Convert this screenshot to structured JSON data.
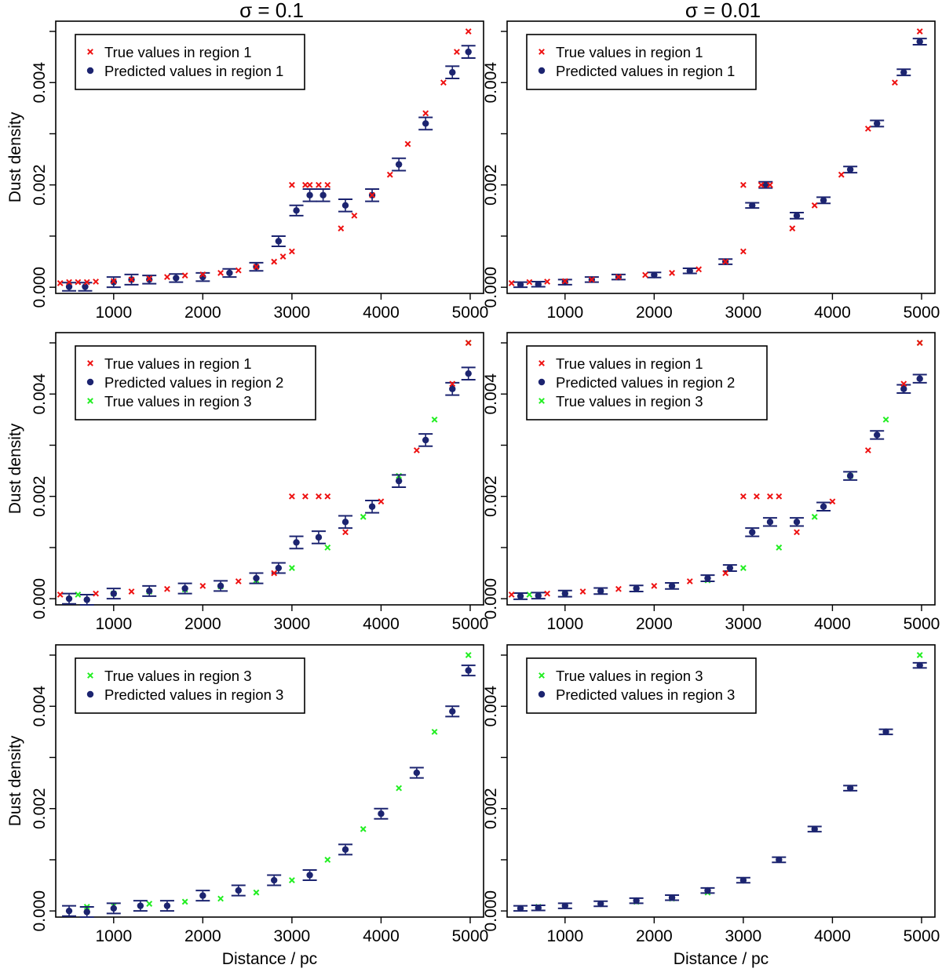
{
  "figure": {
    "column_titles": [
      "σ = 0.1",
      "σ = 0.01"
    ],
    "colors": {
      "true_region1": "#ee1111",
      "predicted": "#1c2470",
      "true_region3": "#22ee22",
      "axis": "#000000"
    }
  },
  "chart_data": [
    {
      "type": "scatter",
      "row": 1,
      "col": 1,
      "sigma": 0.1,
      "pattern": "A",
      "xlabel": "",
      "ylabel": "Dust density",
      "xlim": [
        350,
        5150
      ],
      "ylim": [
        -0.00012,
        0.0052
      ],
      "xticks": [
        1000,
        2000,
        3000,
        4000,
        5000
      ],
      "yticks": [
        0.0,
        0.002,
        0.004
      ],
      "ytick_labels": [
        "0.000",
        "0.002",
        "0.004"
      ],
      "legend": [
        "True values in region 1",
        "Predicted values in region 1"
      ],
      "true_region1": [
        [
          400,
          8e-05
        ],
        [
          500,
          0.0001
        ],
        [
          600,
          0.0001
        ],
        [
          700,
          0.0001
        ],
        [
          800,
          0.00011
        ],
        [
          1000,
          0.00012
        ],
        [
          1200,
          0.00015
        ],
        [
          1400,
          0.00017
        ],
        [
          1600,
          0.0002
        ],
        [
          1800,
          0.00023
        ],
        [
          2000,
          0.00025
        ],
        [
          2200,
          0.00028
        ],
        [
          2400,
          0.00033
        ],
        [
          2600,
          0.0004
        ],
        [
          2800,
          0.0005
        ],
        [
          2900,
          0.0006
        ],
        [
          3000,
          0.0007
        ],
        [
          3000,
          0.002
        ],
        [
          3150,
          0.002
        ],
        [
          3200,
          0.002
        ],
        [
          3300,
          0.002
        ],
        [
          3400,
          0.002
        ],
        [
          3550,
          0.00115
        ],
        [
          3700,
          0.0014
        ],
        [
          3900,
          0.0018
        ],
        [
          4100,
          0.0022
        ],
        [
          4300,
          0.0028
        ],
        [
          4500,
          0.0034
        ],
        [
          4700,
          0.004
        ],
        [
          4850,
          0.0046
        ],
        [
          4980,
          0.005
        ]
      ],
      "predicted": [
        [
          500,
          1e-05,
          8e-05
        ],
        [
          680,
          1e-05,
          8e-05
        ],
        [
          1000,
          0.0001,
          0.0001
        ],
        [
          1200,
          0.00015,
          0.0001
        ],
        [
          1400,
          0.00015,
          8e-05
        ],
        [
          1700,
          0.00018,
          8e-05
        ],
        [
          2000,
          0.0002,
          8e-05
        ],
        [
          2300,
          0.00028,
          8e-05
        ],
        [
          2600,
          0.0004,
          8e-05
        ],
        [
          2850,
          0.0009,
          0.0001
        ],
        [
          3050,
          0.0015,
          0.0001
        ],
        [
          3200,
          0.0018,
          0.00012
        ],
        [
          3350,
          0.0018,
          0.00012
        ],
        [
          3600,
          0.0016,
          0.00012
        ],
        [
          3900,
          0.0018,
          0.00012
        ],
        [
          4200,
          0.0024,
          0.00012
        ],
        [
          4500,
          0.0032,
          0.00012
        ],
        [
          4800,
          0.0042,
          0.00012
        ],
        [
          4980,
          0.0046,
          0.00012
        ]
      ]
    },
    {
      "type": "scatter",
      "row": 1,
      "col": 2,
      "sigma": 0.01,
      "pattern": "A",
      "xlabel": "",
      "ylabel": "",
      "xlim": [
        350,
        5150
      ],
      "ylim": [
        -0.00012,
        0.0052
      ],
      "xticks": [
        1000,
        2000,
        3000,
        4000,
        5000
      ],
      "yticks": [
        0.0,
        0.002,
        0.004
      ],
      "ytick_labels": [
        "0.000",
        "0.002",
        "0.004"
      ],
      "legend": [
        "True values in region 1",
        "Predicted values in region 1"
      ],
      "true_region1": [
        [
          400,
          8e-05
        ],
        [
          600,
          0.0001
        ],
        [
          800,
          0.00011
        ],
        [
          1000,
          0.00012
        ],
        [
          1300,
          0.00015
        ],
        [
          1600,
          0.0002
        ],
        [
          1900,
          0.00024
        ],
        [
          2200,
          0.00028
        ],
        [
          2500,
          0.00035
        ],
        [
          2800,
          0.0005
        ],
        [
          3000,
          0.0007
        ],
        [
          3000,
          0.002
        ],
        [
          3200,
          0.002
        ],
        [
          3300,
          0.002
        ],
        [
          3550,
          0.00115
        ],
        [
          3800,
          0.0016
        ],
        [
          4100,
          0.0022
        ],
        [
          4400,
          0.0031
        ],
        [
          4700,
          0.004
        ],
        [
          4980,
          0.005
        ]
      ],
      "predicted": [
        [
          500,
          5e-05,
          5e-05
        ],
        [
          700,
          6e-05,
          5e-05
        ],
        [
          1000,
          0.0001,
          5e-05
        ],
        [
          1300,
          0.00015,
          5e-05
        ],
        [
          1600,
          0.0002,
          5e-05
        ],
        [
          2000,
          0.00024,
          5e-05
        ],
        [
          2400,
          0.00032,
          5e-05
        ],
        [
          2800,
          0.0005,
          5e-05
        ],
        [
          3100,
          0.0016,
          5e-05
        ],
        [
          3250,
          0.002,
          6e-05
        ],
        [
          3600,
          0.0014,
          6e-05
        ],
        [
          3900,
          0.0017,
          6e-05
        ],
        [
          4200,
          0.0023,
          6e-05
        ],
        [
          4500,
          0.0032,
          6e-05
        ],
        [
          4800,
          0.0042,
          6e-05
        ],
        [
          4980,
          0.0048,
          6e-05
        ]
      ]
    },
    {
      "type": "scatter",
      "row": 2,
      "col": 1,
      "sigma": 0.1,
      "pattern": "B",
      "xlabel": "",
      "ylabel": "Dust density",
      "xlim": [
        350,
        5150
      ],
      "ylim": [
        -0.00012,
        0.0052
      ],
      "xticks": [
        1000,
        2000,
        3000,
        4000,
        5000
      ],
      "yticks": [
        0.0,
        0.002,
        0.004
      ],
      "ytick_labels": [
        "0.000",
        "0.002",
        "0.004"
      ],
      "legend": [
        "True values in region 1",
        "Predicted values in region 2",
        "True values in region 3"
      ],
      "true_region1": [
        [
          400,
          8e-05
        ],
        [
          800,
          0.0001
        ],
        [
          1200,
          0.00014
        ],
        [
          1600,
          0.00019
        ],
        [
          2000,
          0.00025
        ],
        [
          2400,
          0.00034
        ],
        [
          2800,
          0.0005
        ],
        [
          3000,
          0.002
        ],
        [
          3150,
          0.002
        ],
        [
          3300,
          0.002
        ],
        [
          3400,
          0.002
        ],
        [
          3600,
          0.0013
        ],
        [
          4000,
          0.0019
        ],
        [
          4400,
          0.0029
        ],
        [
          4800,
          0.0042
        ],
        [
          4980,
          0.005
        ]
      ],
      "predicted": [
        [
          500,
          0.0,
          0.0001
        ],
        [
          700,
          -2e-05,
          0.0001
        ],
        [
          1000,
          0.0001,
          0.0001
        ],
        [
          1400,
          0.00015,
          0.0001
        ],
        [
          1800,
          0.0002,
          0.0001
        ],
        [
          2200,
          0.00025,
          0.0001
        ],
        [
          2600,
          0.0004,
          0.0001
        ],
        [
          2850,
          0.0006,
          0.0001
        ],
        [
          3050,
          0.0011,
          0.00012
        ],
        [
          3300,
          0.0012,
          0.00012
        ],
        [
          3600,
          0.0015,
          0.00012
        ],
        [
          3900,
          0.0018,
          0.00012
        ],
        [
          4200,
          0.0023,
          0.00012
        ],
        [
          4500,
          0.0031,
          0.00012
        ],
        [
          4800,
          0.0041,
          0.00012
        ],
        [
          4980,
          0.0044,
          0.00012
        ]
      ],
      "true_region3": [
        [
          600,
          8e-05
        ],
        [
          1000,
          0.0001
        ],
        [
          1400,
          0.00014
        ],
        [
          1800,
          0.00018
        ],
        [
          2200,
          0.00024
        ],
        [
          2600,
          0.00036
        ],
        [
          3000,
          0.0006
        ],
        [
          3400,
          0.001
        ],
        [
          3800,
          0.0016
        ],
        [
          4200,
          0.0024
        ],
        [
          4600,
          0.0035
        ],
        [
          4980,
          0.005
        ]
      ]
    },
    {
      "type": "scatter",
      "row": 2,
      "col": 2,
      "sigma": 0.01,
      "pattern": "B",
      "xlabel": "",
      "ylabel": "",
      "xlim": [
        350,
        5150
      ],
      "ylim": [
        -0.00012,
        0.0052
      ],
      "xticks": [
        1000,
        2000,
        3000,
        4000,
        5000
      ],
      "yticks": [
        0.0,
        0.002,
        0.004
      ],
      "ytick_labels": [
        "0.000",
        "0.002",
        "0.004"
      ],
      "legend": [
        "True values in region 1",
        "Predicted values in region 2",
        "True values in region 3"
      ],
      "true_region1": [
        [
          400,
          8e-05
        ],
        [
          800,
          0.0001
        ],
        [
          1200,
          0.00014
        ],
        [
          1600,
          0.00019
        ],
        [
          2000,
          0.00025
        ],
        [
          2400,
          0.00034
        ],
        [
          2800,
          0.0005
        ],
        [
          3000,
          0.002
        ],
        [
          3150,
          0.002
        ],
        [
          3300,
          0.002
        ],
        [
          3400,
          0.002
        ],
        [
          3600,
          0.0013
        ],
        [
          4000,
          0.0019
        ],
        [
          4400,
          0.0029
        ],
        [
          4800,
          0.0042
        ],
        [
          4980,
          0.005
        ]
      ],
      "predicted": [
        [
          500,
          5e-05,
          6e-05
        ],
        [
          700,
          6e-05,
          6e-05
        ],
        [
          1000,
          0.0001,
          6e-05
        ],
        [
          1400,
          0.00015,
          6e-05
        ],
        [
          1800,
          0.0002,
          6e-05
        ],
        [
          2200,
          0.00025,
          6e-05
        ],
        [
          2600,
          0.0004,
          6e-05
        ],
        [
          2850,
          0.0006,
          6e-05
        ],
        [
          3100,
          0.0013,
          8e-05
        ],
        [
          3300,
          0.0015,
          8e-05
        ],
        [
          3600,
          0.0015,
          8e-05
        ],
        [
          3900,
          0.0018,
          8e-05
        ],
        [
          4200,
          0.0024,
          8e-05
        ],
        [
          4500,
          0.0032,
          8e-05
        ],
        [
          4800,
          0.0041,
          8e-05
        ],
        [
          4980,
          0.0043,
          8e-05
        ]
      ],
      "true_region3": [
        [
          600,
          8e-05
        ],
        [
          1000,
          0.0001
        ],
        [
          1400,
          0.00014
        ],
        [
          1800,
          0.00018
        ],
        [
          2200,
          0.00024
        ],
        [
          2600,
          0.00036
        ],
        [
          3000,
          0.0006
        ],
        [
          3400,
          0.001
        ],
        [
          3800,
          0.0016
        ],
        [
          4200,
          0.0024
        ],
        [
          4600,
          0.0035
        ],
        [
          4980,
          0.005
        ]
      ]
    },
    {
      "type": "scatter",
      "row": 3,
      "col": 1,
      "sigma": 0.1,
      "pattern": "C",
      "xlabel": "Distance / pc",
      "ylabel": "Dust density",
      "xlim": [
        350,
        5150
      ],
      "ylim": [
        -0.00012,
        0.0052
      ],
      "xticks": [
        1000,
        2000,
        3000,
        4000,
        5000
      ],
      "yticks": [
        0.0,
        0.002,
        0.004
      ],
      "ytick_labels": [
        "0.000",
        "0.002",
        "0.004"
      ],
      "legend": [
        "True values in region 3",
        "Predicted values in region 3"
      ],
      "predicted": [
        [
          500,
          0.0,
          0.0001
        ],
        [
          700,
          -2e-05,
          0.0001
        ],
        [
          1000,
          5e-05,
          0.0001
        ],
        [
          1300,
          0.0001,
          0.0001
        ],
        [
          1600,
          0.0001,
          0.0001
        ],
        [
          2000,
          0.0003,
          0.0001
        ],
        [
          2400,
          0.0004,
          0.0001
        ],
        [
          2800,
          0.0006,
          0.0001
        ],
        [
          3200,
          0.0007,
          0.0001
        ],
        [
          3600,
          0.0012,
          0.0001
        ],
        [
          4000,
          0.0019,
          0.0001
        ],
        [
          4400,
          0.0027,
          0.0001
        ],
        [
          4800,
          0.0039,
          0.0001
        ],
        [
          4980,
          0.0047,
          0.0001
        ]
      ],
      "true_region3": [
        [
          700,
          8e-05
        ],
        [
          1000,
          0.0001
        ],
        [
          1400,
          0.00014
        ],
        [
          1800,
          0.00018
        ],
        [
          2200,
          0.00024
        ],
        [
          2600,
          0.00036
        ],
        [
          3000,
          0.0006
        ],
        [
          3400,
          0.001
        ],
        [
          3800,
          0.0016
        ],
        [
          4200,
          0.0024
        ],
        [
          4600,
          0.0035
        ],
        [
          4980,
          0.005
        ]
      ]
    },
    {
      "type": "scatter",
      "row": 3,
      "col": 2,
      "sigma": 0.01,
      "pattern": "C",
      "xlabel": "Distance / pc",
      "ylabel": "",
      "xlim": [
        350,
        5150
      ],
      "ylim": [
        -0.00012,
        0.0052
      ],
      "xticks": [
        1000,
        2000,
        3000,
        4000,
        5000
      ],
      "yticks": [
        0.0,
        0.002,
        0.004
      ],
      "ytick_labels": [
        "0.000",
        "0.002",
        "0.004"
      ],
      "legend": [
        "True values in region 3",
        "Predicted values in region 3"
      ],
      "predicted": [
        [
          500,
          5e-05,
          5e-05
        ],
        [
          700,
          6e-05,
          5e-05
        ],
        [
          1000,
          0.0001,
          5e-05
        ],
        [
          1400,
          0.00014,
          5e-05
        ],
        [
          1800,
          0.0002,
          5e-05
        ],
        [
          2200,
          0.00026,
          5e-05
        ],
        [
          2600,
          0.0004,
          5e-05
        ],
        [
          3000,
          0.0006,
          5e-05
        ],
        [
          3400,
          0.001,
          5e-05
        ],
        [
          3800,
          0.0016,
          5e-05
        ],
        [
          4200,
          0.0024,
          5e-05
        ],
        [
          4600,
          0.0035,
          5e-05
        ],
        [
          4980,
          0.0048,
          5e-05
        ]
      ],
      "true_region3": [
        [
          700,
          8e-05
        ],
        [
          1000,
          0.0001
        ],
        [
          1400,
          0.00014
        ],
        [
          1800,
          0.00018
        ],
        [
          2200,
          0.00024
        ],
        [
          2600,
          0.00036
        ],
        [
          3000,
          0.0006
        ],
        [
          3400,
          0.001
        ],
        [
          3800,
          0.0016
        ],
        [
          4200,
          0.0024
        ],
        [
          4600,
          0.0035
        ],
        [
          4980,
          0.005
        ]
      ]
    }
  ]
}
